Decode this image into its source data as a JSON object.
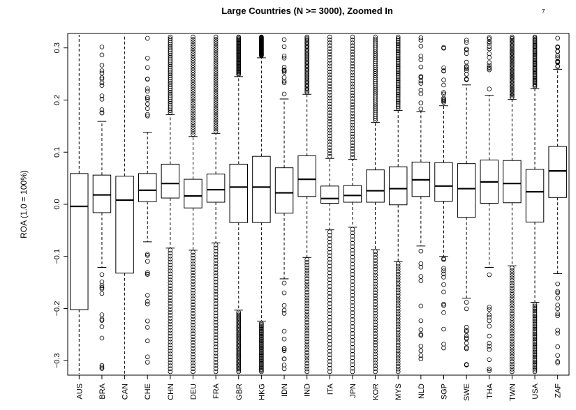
{
  "page": {
    "number": "7"
  },
  "chart_data": {
    "type": "box",
    "title": "Large Countries (N >= 3000), Zoomed In",
    "xlabel": "",
    "ylabel": "ROA (1.0 = 100%)",
    "ylim": [
      -0.325,
      0.325
    ],
    "yticks": [
      -0.3,
      -0.2,
      -0.1,
      0.0,
      0.1,
      0.2,
      0.3
    ],
    "ytick_labels": [
      "−0.3",
      "−0.2",
      "−0.1",
      "0.0",
      "0.1",
      "0.2",
      "0.3"
    ],
    "grid": false,
    "categories": [
      "AUS",
      "BRA",
      "CAN",
      "CHE",
      "CHN",
      "DEU",
      "FRA",
      "GBR",
      "HKG",
      "IDN",
      "IND",
      "ITA",
      "JPN",
      "KOR",
      "MYS",
      "NLD",
      "SGP",
      "SWE",
      "THA",
      "TWN",
      "USA",
      "ZAF"
    ],
    "boxes": [
      {
        "q1": -0.202,
        "median": -0.004,
        "q3": 0.059,
        "whisker_low": null,
        "whisker_high": null,
        "outliers_low": "none",
        "outliers_high": "none"
      },
      {
        "q1": -0.016,
        "median": 0.018,
        "q3": 0.056,
        "whisker_low": -0.121,
        "whisker_high": 0.159,
        "outliers_low": "sparse",
        "outliers_high": "sparse"
      },
      {
        "q1": -0.132,
        "median": 0.008,
        "q3": 0.054,
        "whisker_low": null,
        "whisker_high": null,
        "outliers_low": "none",
        "outliers_high": "none"
      },
      {
        "q1": 0.005,
        "median": 0.027,
        "q3": 0.059,
        "whisker_low": -0.072,
        "whisker_high": 0.138,
        "outliers_low": "sparse",
        "outliers_high": "sparse"
      },
      {
        "q1": 0.012,
        "median": 0.04,
        "q3": 0.077,
        "whisker_low": -0.084,
        "whisker_high": 0.172,
        "outliers_low": "dense",
        "outliers_high": "dense"
      },
      {
        "q1": -0.007,
        "median": 0.016,
        "q3": 0.048,
        "whisker_low": -0.088,
        "whisker_high": 0.13,
        "outliers_low": "dense",
        "outliers_high": "dense"
      },
      {
        "q1": 0.004,
        "median": 0.028,
        "q3": 0.058,
        "whisker_low": -0.074,
        "whisker_high": 0.136,
        "outliers_low": "dense",
        "outliers_high": "dense"
      },
      {
        "q1": -0.035,
        "median": 0.033,
        "q3": 0.077,
        "whisker_low": -0.203,
        "whisker_high": 0.245,
        "outliers_low": "dense",
        "outliers_high": "dense"
      },
      {
        "q1": -0.035,
        "median": 0.033,
        "q3": 0.092,
        "whisker_low": -0.224,
        "whisker_high": 0.281,
        "outliers_low": "dense",
        "outliers_high": "dense"
      },
      {
        "q1": -0.017,
        "median": 0.022,
        "q3": 0.07,
        "whisker_low": -0.143,
        "whisker_high": 0.202,
        "outliers_low": "sparse",
        "outliers_high": "sparse"
      },
      {
        "q1": 0.015,
        "median": 0.048,
        "q3": 0.093,
        "whisker_low": -0.102,
        "whisker_high": 0.211,
        "outliers_low": "dense",
        "outliers_high": "dense"
      },
      {
        "q1": 0.002,
        "median": 0.011,
        "q3": 0.035,
        "whisker_low": -0.049,
        "whisker_high": 0.088,
        "outliers_low": "dense",
        "outliers_high": "dense"
      },
      {
        "q1": 0.004,
        "median": 0.017,
        "q3": 0.036,
        "whisker_low": -0.044,
        "whisker_high": 0.086,
        "outliers_low": "dense",
        "outliers_high": "dense"
      },
      {
        "q1": 0.004,
        "median": 0.026,
        "q3": 0.066,
        "whisker_low": -0.087,
        "whisker_high": 0.157,
        "outliers_low": "dense",
        "outliers_high": "dense"
      },
      {
        "q1": -0.001,
        "median": 0.03,
        "q3": 0.072,
        "whisker_low": -0.11,
        "whisker_high": 0.18,
        "outliers_low": "dense",
        "outliers_high": "dense"
      },
      {
        "q1": 0.015,
        "median": 0.047,
        "q3": 0.081,
        "whisker_low": -0.08,
        "whisker_high": 0.178,
        "outliers_low": "sparse",
        "outliers_high": "sparse"
      },
      {
        "q1": 0.006,
        "median": 0.035,
        "q3": 0.08,
        "whisker_low": -0.1,
        "whisker_high": 0.189,
        "outliers_low": "sparse",
        "outliers_high": "sparse"
      },
      {
        "q1": -0.025,
        "median": 0.03,
        "q3": 0.078,
        "whisker_low": -0.18,
        "whisker_high": 0.229,
        "outliers_low": "sparse",
        "outliers_high": "sparse"
      },
      {
        "q1": 0.002,
        "median": 0.043,
        "q3": 0.085,
        "whisker_low": -0.121,
        "whisker_high": 0.209,
        "outliers_low": "sparse",
        "outliers_high": "sparse"
      },
      {
        "q1": 0.003,
        "median": 0.04,
        "q3": 0.084,
        "whisker_low": -0.118,
        "whisker_high": 0.201,
        "outliers_low": "dense",
        "outliers_high": "dense"
      },
      {
        "q1": -0.034,
        "median": 0.024,
        "q3": 0.067,
        "whisker_low": -0.188,
        "whisker_high": 0.222,
        "outliers_low": "dense",
        "outliers_high": "dense"
      },
      {
        "q1": 0.013,
        "median": 0.064,
        "q3": 0.111,
        "whisker_low": -0.133,
        "whisker_high": 0.259,
        "outliers_low": "sparse",
        "outliers_high": "sparse"
      }
    ]
  }
}
